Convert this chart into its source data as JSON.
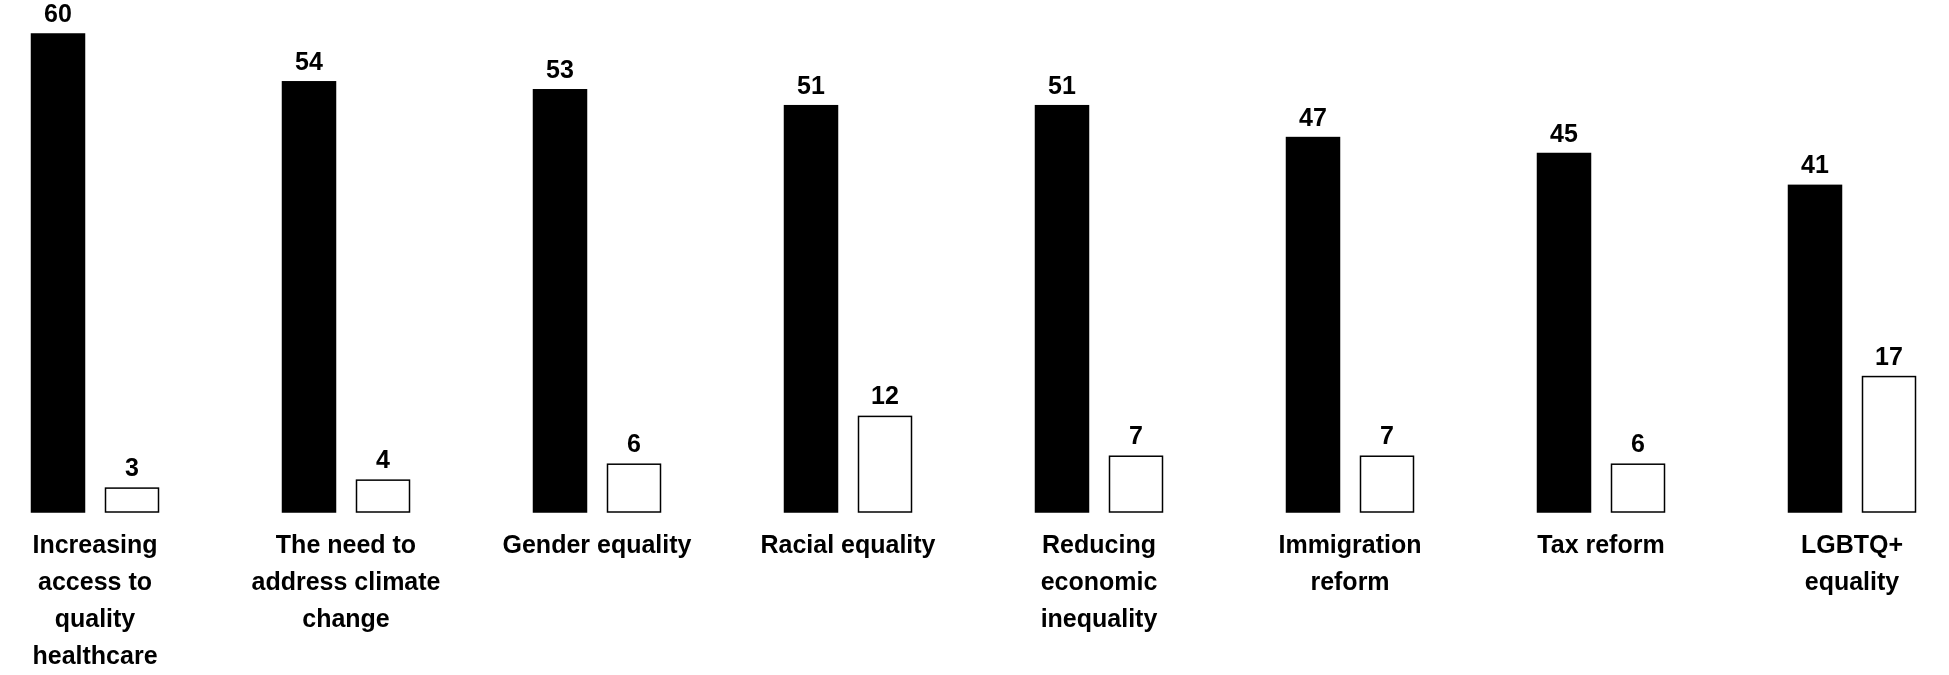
{
  "chart_data": {
    "type": "bar",
    "categories": [
      "Increasing access to quality healthcare",
      "The need to address climate change",
      "Gender equality",
      "Racial equality",
      "Reducing economic inequality",
      "Immigration reform",
      "Tax reform",
      "LGBTQ+ equality"
    ],
    "series": [
      {
        "color": "#000000",
        "values": [
          60,
          54,
          53,
          51,
          51,
          47,
          45,
          41
        ]
      },
      {
        "color": "#ffffff",
        "values": [
          3,
          4,
          6,
          12,
          7,
          7,
          6,
          17
        ]
      }
    ],
    "data_labels": true
  }
}
